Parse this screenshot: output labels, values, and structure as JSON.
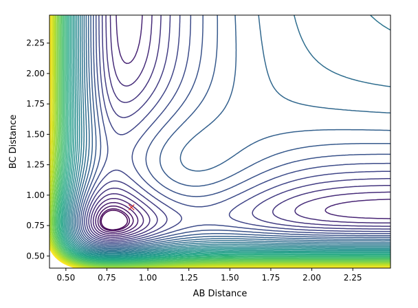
{
  "chart_data": {
    "type": "contour",
    "title": "",
    "xlabel": "AB Distance",
    "ylabel": "BC Distance",
    "xlim": [
      0.4,
      2.48
    ],
    "ylim": [
      0.4,
      2.48
    ],
    "xticks": [
      0.5,
      0.75,
      1.0,
      1.25,
      1.5,
      1.75,
      2.0,
      2.25
    ],
    "yticks": [
      0.5,
      0.75,
      1.0,
      1.25,
      1.5,
      1.75,
      2.0,
      2.25
    ],
    "xtick_labels": [
      "0.50",
      "0.75",
      "1.00",
      "1.25",
      "1.50",
      "1.75",
      "2.00",
      "2.25"
    ],
    "ytick_labels": [
      "0.50",
      "0.75",
      "1.00",
      "1.25",
      "1.50",
      "1.75",
      "2.00",
      "2.25"
    ],
    "colormap": "viridis",
    "grid": false,
    "marker": {
      "x": 0.9,
      "y": 0.9,
      "symbol": "x",
      "color": "#d62728"
    }
  }
}
